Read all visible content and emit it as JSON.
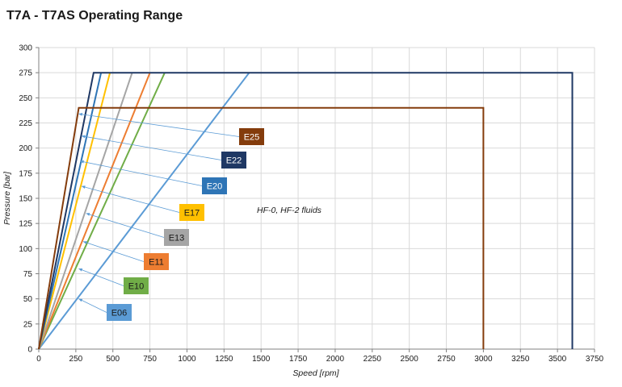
{
  "title": "T7A - T7AS Operating Range",
  "chart_data": {
    "type": "line",
    "title": "T7A - T7AS Operating Range",
    "xlabel": "Speed [rpm]",
    "ylabel": "Pressure [bar]",
    "xlim": [
      0,
      3750
    ],
    "ylim": [
      0,
      300
    ],
    "x_ticks": [
      "0",
      "250",
      "500",
      "750",
      "1000",
      "1250",
      "1500",
      "1750",
      "2000",
      "2250",
      "2500",
      "2750",
      "3000",
      "3250",
      "3500",
      "3750"
    ],
    "y_ticks": [
      "0",
      "25",
      "50",
      "75",
      "100",
      "125",
      "150",
      "175",
      "200",
      "225",
      "250",
      "275",
      "300"
    ],
    "grid": true,
    "annotation": "HF-0,  HF-2 fluids",
    "series": [
      {
        "name": "E25",
        "color": "#843c0c",
        "label_text_color": "#ffffff",
        "points": [
          [
            0,
            0
          ],
          [
            270,
            240
          ],
          [
            3000,
            240
          ],
          [
            3000,
            0
          ]
        ],
        "label_arrow_to": [
          270,
          234
        ]
      },
      {
        "name": "E22",
        "color": "#1f3864",
        "label_text_color": "#ffffff",
        "points": [
          [
            0,
            0
          ],
          [
            370,
            275
          ],
          [
            3600,
            275
          ],
          [
            3600,
            0
          ]
        ],
        "label_arrow_to": [
          290,
          212
        ]
      },
      {
        "name": "E20",
        "color": "#2e75b6",
        "label_text_color": "#ffffff",
        "points": [
          [
            0,
            0
          ],
          [
            420,
            275
          ]
        ],
        "label_arrow_to": [
          280,
          187
        ]
      },
      {
        "name": "E17",
        "color": "#ffc000",
        "label_text_color": "#1a1a1a",
        "points": [
          [
            0,
            0
          ],
          [
            480,
            275
          ]
        ],
        "label_arrow_to": [
          290,
          162
        ]
      },
      {
        "name": "E13",
        "color": "#a5a5a5",
        "label_text_color": "#1a1a1a",
        "points": [
          [
            0,
            0
          ],
          [
            630,
            275
          ]
        ],
        "label_arrow_to": [
          320,
          135
        ]
      },
      {
        "name": "E11",
        "color": "#ed7d31",
        "label_text_color": "#1a1a1a",
        "points": [
          [
            0,
            0
          ],
          [
            750,
            275
          ]
        ],
        "label_arrow_to": [
          300,
          107
        ]
      },
      {
        "name": "E10",
        "color": "#70ad47",
        "label_text_color": "#1a1a1a",
        "points": [
          [
            0,
            0
          ],
          [
            850,
            275
          ]
        ],
        "label_arrow_to": [
          270,
          80
        ]
      },
      {
        "name": "E06",
        "color": "#5b9bd5",
        "label_text_color": "#1a1a1a",
        "points": [
          [
            0,
            0
          ],
          [
            1420,
            275
          ]
        ],
        "label_arrow_to": [
          270,
          50
        ]
      }
    ]
  }
}
